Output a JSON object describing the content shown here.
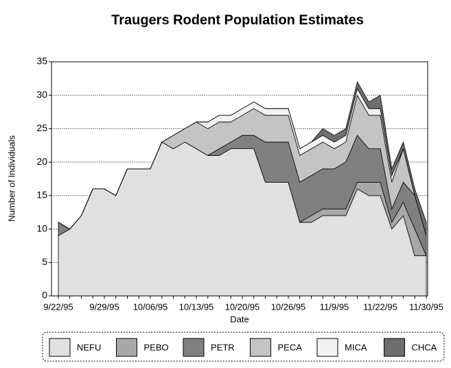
{
  "chart_data": {
    "type": "stacked-area",
    "title": "Traugers Rodent Population Estimates",
    "x_label": "Date",
    "y_label": "Number of Individuals",
    "categories": [
      "9/22/95",
      null,
      null,
      null,
      "9/29/95",
      null,
      null,
      null,
      "10/06/95",
      null,
      null,
      null,
      "10/13/95",
      null,
      null,
      null,
      "10/20/95",
      null,
      null,
      null,
      "10/26/95",
      null,
      null,
      null,
      "11/9/95",
      null,
      null,
      null,
      "11/22/95",
      null,
      null,
      null,
      "11/30/95"
    ],
    "ylim": [
      0,
      35
    ],
    "yticks": [
      0,
      5,
      10,
      15,
      20,
      25,
      30,
      35
    ],
    "grid": true,
    "series": [
      {
        "name": "NEFU",
        "color": "#e0e0e0",
        "values": [
          9,
          10,
          12,
          16,
          16,
          15,
          19,
          19,
          19,
          23,
          22,
          23,
          22,
          21,
          21,
          22,
          22,
          22,
          17,
          17,
          17,
          11,
          11,
          12,
          12,
          12,
          16,
          15,
          15,
          10,
          12,
          6,
          6
        ]
      },
      {
        "name": "PEBO",
        "color": "#a8a8a8",
        "values": [
          0,
          0,
          0,
          0,
          0,
          0,
          0,
          0,
          0,
          0,
          0,
          0,
          0,
          0,
          0,
          0,
          0,
          0,
          0,
          0,
          0,
          0,
          1,
          1,
          1,
          1,
          1,
          2,
          2,
          1,
          2,
          4,
          0
        ]
      },
      {
        "name": "PETR",
        "color": "#808080",
        "values": [
          2,
          0,
          0,
          0,
          0,
          0,
          0,
          0,
          0,
          0,
          0,
          0,
          0,
          0,
          1,
          1,
          2,
          2,
          6,
          6,
          6,
          6,
          6,
          6,
          6,
          7,
          7,
          5,
          5,
          2,
          3,
          5,
          3
        ]
      },
      {
        "name": "PECA",
        "color": "#c4c4c4",
        "values": [
          0,
          0,
          0,
          0,
          0,
          0,
          0,
          0,
          0,
          0,
          2,
          2,
          4,
          4,
          4,
          3,
          3,
          4,
          4,
          4,
          4,
          4,
          4,
          4,
          3,
          3,
          6,
          5,
          5,
          4,
          5,
          0,
          0
        ]
      },
      {
        "name": "MICA",
        "color": "#f2f2f2",
        "values": [
          0,
          0,
          0,
          0,
          0,
          0,
          0,
          0,
          0,
          0,
          0,
          0,
          0,
          1,
          1,
          1,
          1,
          1,
          1,
          1,
          1,
          1,
          1,
          1,
          1,
          1,
          1,
          1,
          1,
          1,
          0,
          0,
          0
        ]
      },
      {
        "name": "CHCA",
        "color": "#6e6e6e",
        "values": [
          0,
          0,
          0,
          0,
          0,
          0,
          0,
          0,
          0,
          0,
          0,
          0,
          0,
          0,
          0,
          0,
          0,
          0,
          0,
          0,
          0,
          0,
          0,
          1,
          1,
          1,
          1,
          1,
          2,
          1,
          1,
          1,
          2
        ]
      }
    ]
  }
}
